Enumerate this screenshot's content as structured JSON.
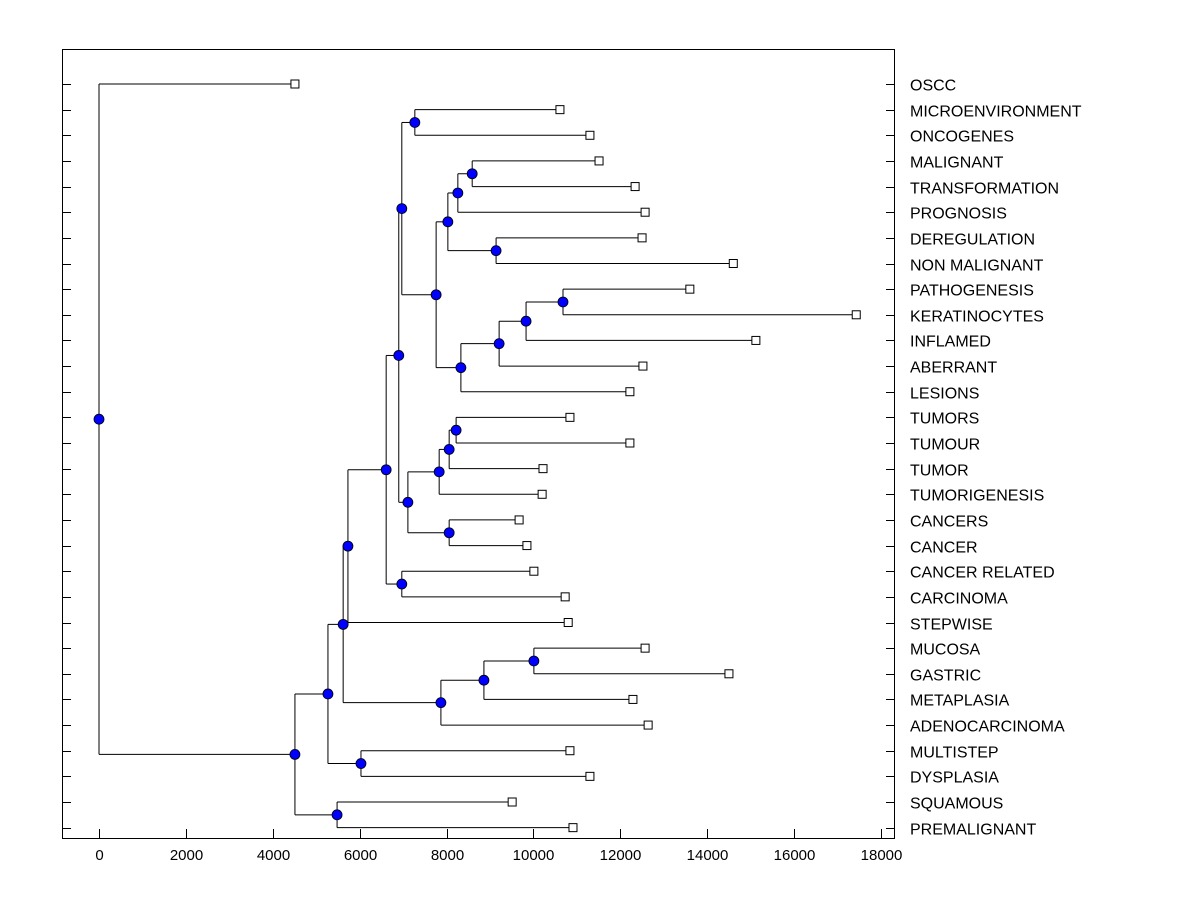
{
  "chart_data": {
    "type": "dendrogram",
    "title": "",
    "xlabel": "",
    "ylabel": "",
    "xlim": [
      -850,
      18300
    ],
    "xticks": [
      0,
      2000,
      4000,
      6000,
      8000,
      10000,
      12000,
      14000,
      16000,
      18000
    ],
    "node_color": "#0000ff",
    "leaf_marker": "open-square",
    "leaf_order": [
      "OSCC",
      "MICROENVIRONMENT",
      "ONCOGENES",
      "MALIGNANT",
      "TRANSFORMATION",
      "PROGNOSIS",
      "DEREGULATION",
      "NON MALIGNANT",
      "PATHOGENESIS",
      "KERATINOCYTES",
      "INFLAMED",
      "ABERRANT",
      "LESIONS",
      "TUMORS",
      "TUMOUR",
      "TUMOR",
      "TUMORIGENESIS",
      "CANCERS",
      "CANCER",
      "CANCER RELATED",
      "CARCINOMA",
      "STEPWISE",
      "MUCOSA",
      "GASTRIC",
      "METAPLASIA",
      "ADENOCARCINOMA",
      "MULTISTEP",
      "DYSPLASIA",
      "SQUAMOUS",
      "PREMALIGNANT"
    ],
    "tree": {
      "h": 0,
      "children": [
        {
          "label": "OSCC",
          "h": 4510
        },
        {
          "h": 4510,
          "children": [
            {
              "h": 5270,
              "children": [
                {
                  "h": 5620,
                  "children": [
                    {
                      "h": 5730,
                      "children": [
                        {
                          "h": 6610,
                          "children": [
                            {
                              "h": 6900,
                              "children": [
                                {
                                  "h": 6970,
                                  "children": [
                                    {
                                      "h": 7270,
                                      "children": [
                                        {
                                          "label": "MICROENVIRONMENT",
                                          "h": 10610
                                        },
                                        {
                                          "label": "ONCOGENES",
                                          "h": 11300
                                        }
                                      ]
                                    },
                                    {
                                      "h": 7760,
                                      "children": [
                                        {
                                          "h": 8030,
                                          "children": [
                                            {
                                              "h": 8260,
                                              "children": [
                                                {
                                                  "h": 8590,
                                                  "children": [
                                                    {
                                                      "label": "MALIGNANT",
                                                      "h": 11510
                                                    },
                                                    {
                                                      "label": "TRANSFORMATION",
                                                      "h": 12340
                                                    }
                                                  ]
                                                },
                                                {
                                                  "label": "PROGNOSIS",
                                                  "h": 12570
                                                }
                                              ]
                                            },
                                            {
                                              "h": 9140,
                                              "children": [
                                                {
                                                  "label": "DEREGULATION",
                                                  "h": 12500
                                                },
                                                {
                                                  "label": "NON MALIGNANT",
                                                  "h": 14600
                                                }
                                              ]
                                            }
                                          ]
                                        },
                                        {
                                          "h": 8330,
                                          "children": [
                                            {
                                              "h": 9210,
                                              "children": [
                                                {
                                                  "h": 9830,
                                                  "children": [
                                                    {
                                                      "h": 10680,
                                                      "children": [
                                                        {
                                                          "label": "PATHOGENESIS",
                                                          "h": 13600
                                                        },
                                                        {
                                                          "label": "KERATINOCYTES",
                                                          "h": 17430
                                                        }
                                                      ]
                                                    },
                                                    {
                                                      "label": "INFLAMED",
                                                      "h": 15120
                                                    }
                                                  ]
                                                },
                                                {
                                                  "label": "ABERRANT",
                                                  "h": 12520
                                                }
                                              ]
                                            },
                                            {
                                              "label": "LESIONS",
                                              "h": 12220
                                            }
                                          ]
                                        }
                                      ]
                                    }
                                  ]
                                },
                                {
                                  "h": 7110,
                                  "children": [
                                    {
                                      "h": 7830,
                                      "children": [
                                        {
                                          "h": 8060,
                                          "children": [
                                            {
                                              "h": 8220,
                                              "children": [
                                                {
                                                  "label": "TUMORS",
                                                  "h": 10840
                                                },
                                                {
                                                  "label": "TUMOUR",
                                                  "h": 12220
                                                }
                                              ]
                                            },
                                            {
                                              "label": "TUMOR",
                                              "h": 10220
                                            }
                                          ]
                                        },
                                        {
                                          "label": "TUMORIGENESIS",
                                          "h": 10200
                                        }
                                      ]
                                    },
                                    {
                                      "h": 8060,
                                      "children": [
                                        {
                                          "label": "CANCERS",
                                          "h": 9670
                                        },
                                        {
                                          "label": "CANCER",
                                          "h": 9850
                                        }
                                      ]
                                    }
                                  ]
                                }
                              ]
                            },
                            {
                              "h": 6970,
                              "children": [
                                {
                                  "label": "CANCER RELATED",
                                  "h": 10010
                                },
                                {
                                  "label": "CARCINOMA",
                                  "h": 10730
                                }
                              ]
                            }
                          ]
                        },
                        {
                          "label": "STEPWISE",
                          "h": 10800
                        }
                      ]
                    },
                    {
                      "h": 7870,
                      "children": [
                        {
                          "h": 8860,
                          "children": [
                            {
                              "h": 10010,
                              "children": [
                                {
                                  "label": "MUCOSA",
                                  "h": 12570
                                },
                                {
                                  "label": "GASTRIC",
                                  "h": 14500
                                }
                              ]
                            },
                            {
                              "label": "METAPLASIA",
                              "h": 12290
                            }
                          ]
                        },
                        {
                          "label": "ADENOCARCINOMA",
                          "h": 12640
                        }
                      ]
                    }
                  ]
                },
                {
                  "h": 6030,
                  "children": [
                    {
                      "label": "MULTISTEP",
                      "h": 10840
                    },
                    {
                      "label": "DYSPLASIA",
                      "h": 11300
                    }
                  ]
                }
              ]
            },
            {
              "h": 5480,
              "children": [
                {
                  "label": "SQUAMOUS",
                  "h": 9510
                },
                {
                  "label": "PREMALIGNANT",
                  "h": 10910
                }
              ]
            }
          ]
        }
      ]
    }
  }
}
